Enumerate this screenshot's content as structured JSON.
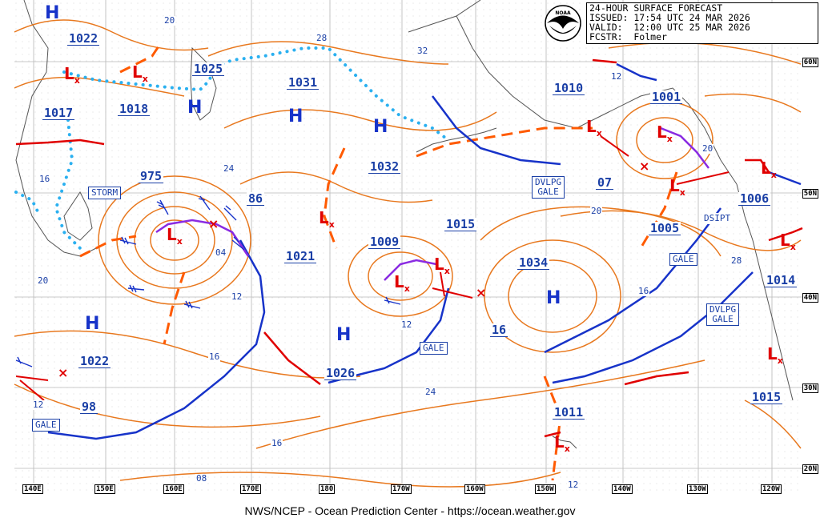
{
  "header": {
    "line1": "24-HOUR SURFACE FORECAST",
    "line2": "ISSUED: 17:54 UTC 24 MAR 2026",
    "line3": "VALID:  12:00 UTC 25 MAR 2026",
    "line4": "FCSTR:  Folmer"
  },
  "logo_text": "NOAA",
  "footer": "NWS/NCEP - Ocean Prediction Center - https://ocean.weather.gov",
  "latitudes": [
    "60N",
    "50N",
    "40N",
    "30N",
    "20N"
  ],
  "longitudes": [
    "140E",
    "150E",
    "160E",
    "170E",
    "180",
    "170W",
    "160W",
    "150W",
    "140W",
    "130W",
    "120W"
  ],
  "pressure_labels": [
    "1022",
    "1017",
    "1018",
    "1025",
    "1031",
    "1032",
    "975",
    "86",
    "1021",
    "1009",
    "1015",
    "1034",
    "1010",
    "1001",
    "1006",
    "1005",
    "1014",
    "1026",
    "1022",
    "98",
    "1011",
    "1015",
    "07",
    "16"
  ],
  "contour_labels": [
    "20",
    "28",
    "32",
    "12",
    "24",
    "16",
    "04",
    "12",
    "20",
    "16",
    "24",
    "16",
    "12",
    "08",
    "20",
    "28",
    "16",
    "20",
    "12",
    "12"
  ],
  "high_symbol": "H",
  "boxes": {
    "storm": "STORM",
    "gale1": "GALE",
    "gale2": "GALE",
    "gale3": "GALE",
    "dvlpg1_a": "DVLPG",
    "dvlpg1_b": "GALE",
    "dvlpg2_a": "DVLPG",
    "dvlpg2_b": "GALE",
    "dsipt": "DSIPT"
  },
  "colors": {
    "isobar": "#e8781e",
    "cold_front": "#1733c9",
    "warm_front": "#e00000",
    "occluded_front": "#8a2be2",
    "trough": "#ff5a00",
    "ice_edge": "#2ab0f0",
    "land": "#5a5a5a",
    "grid": "#b0b0b0"
  }
}
